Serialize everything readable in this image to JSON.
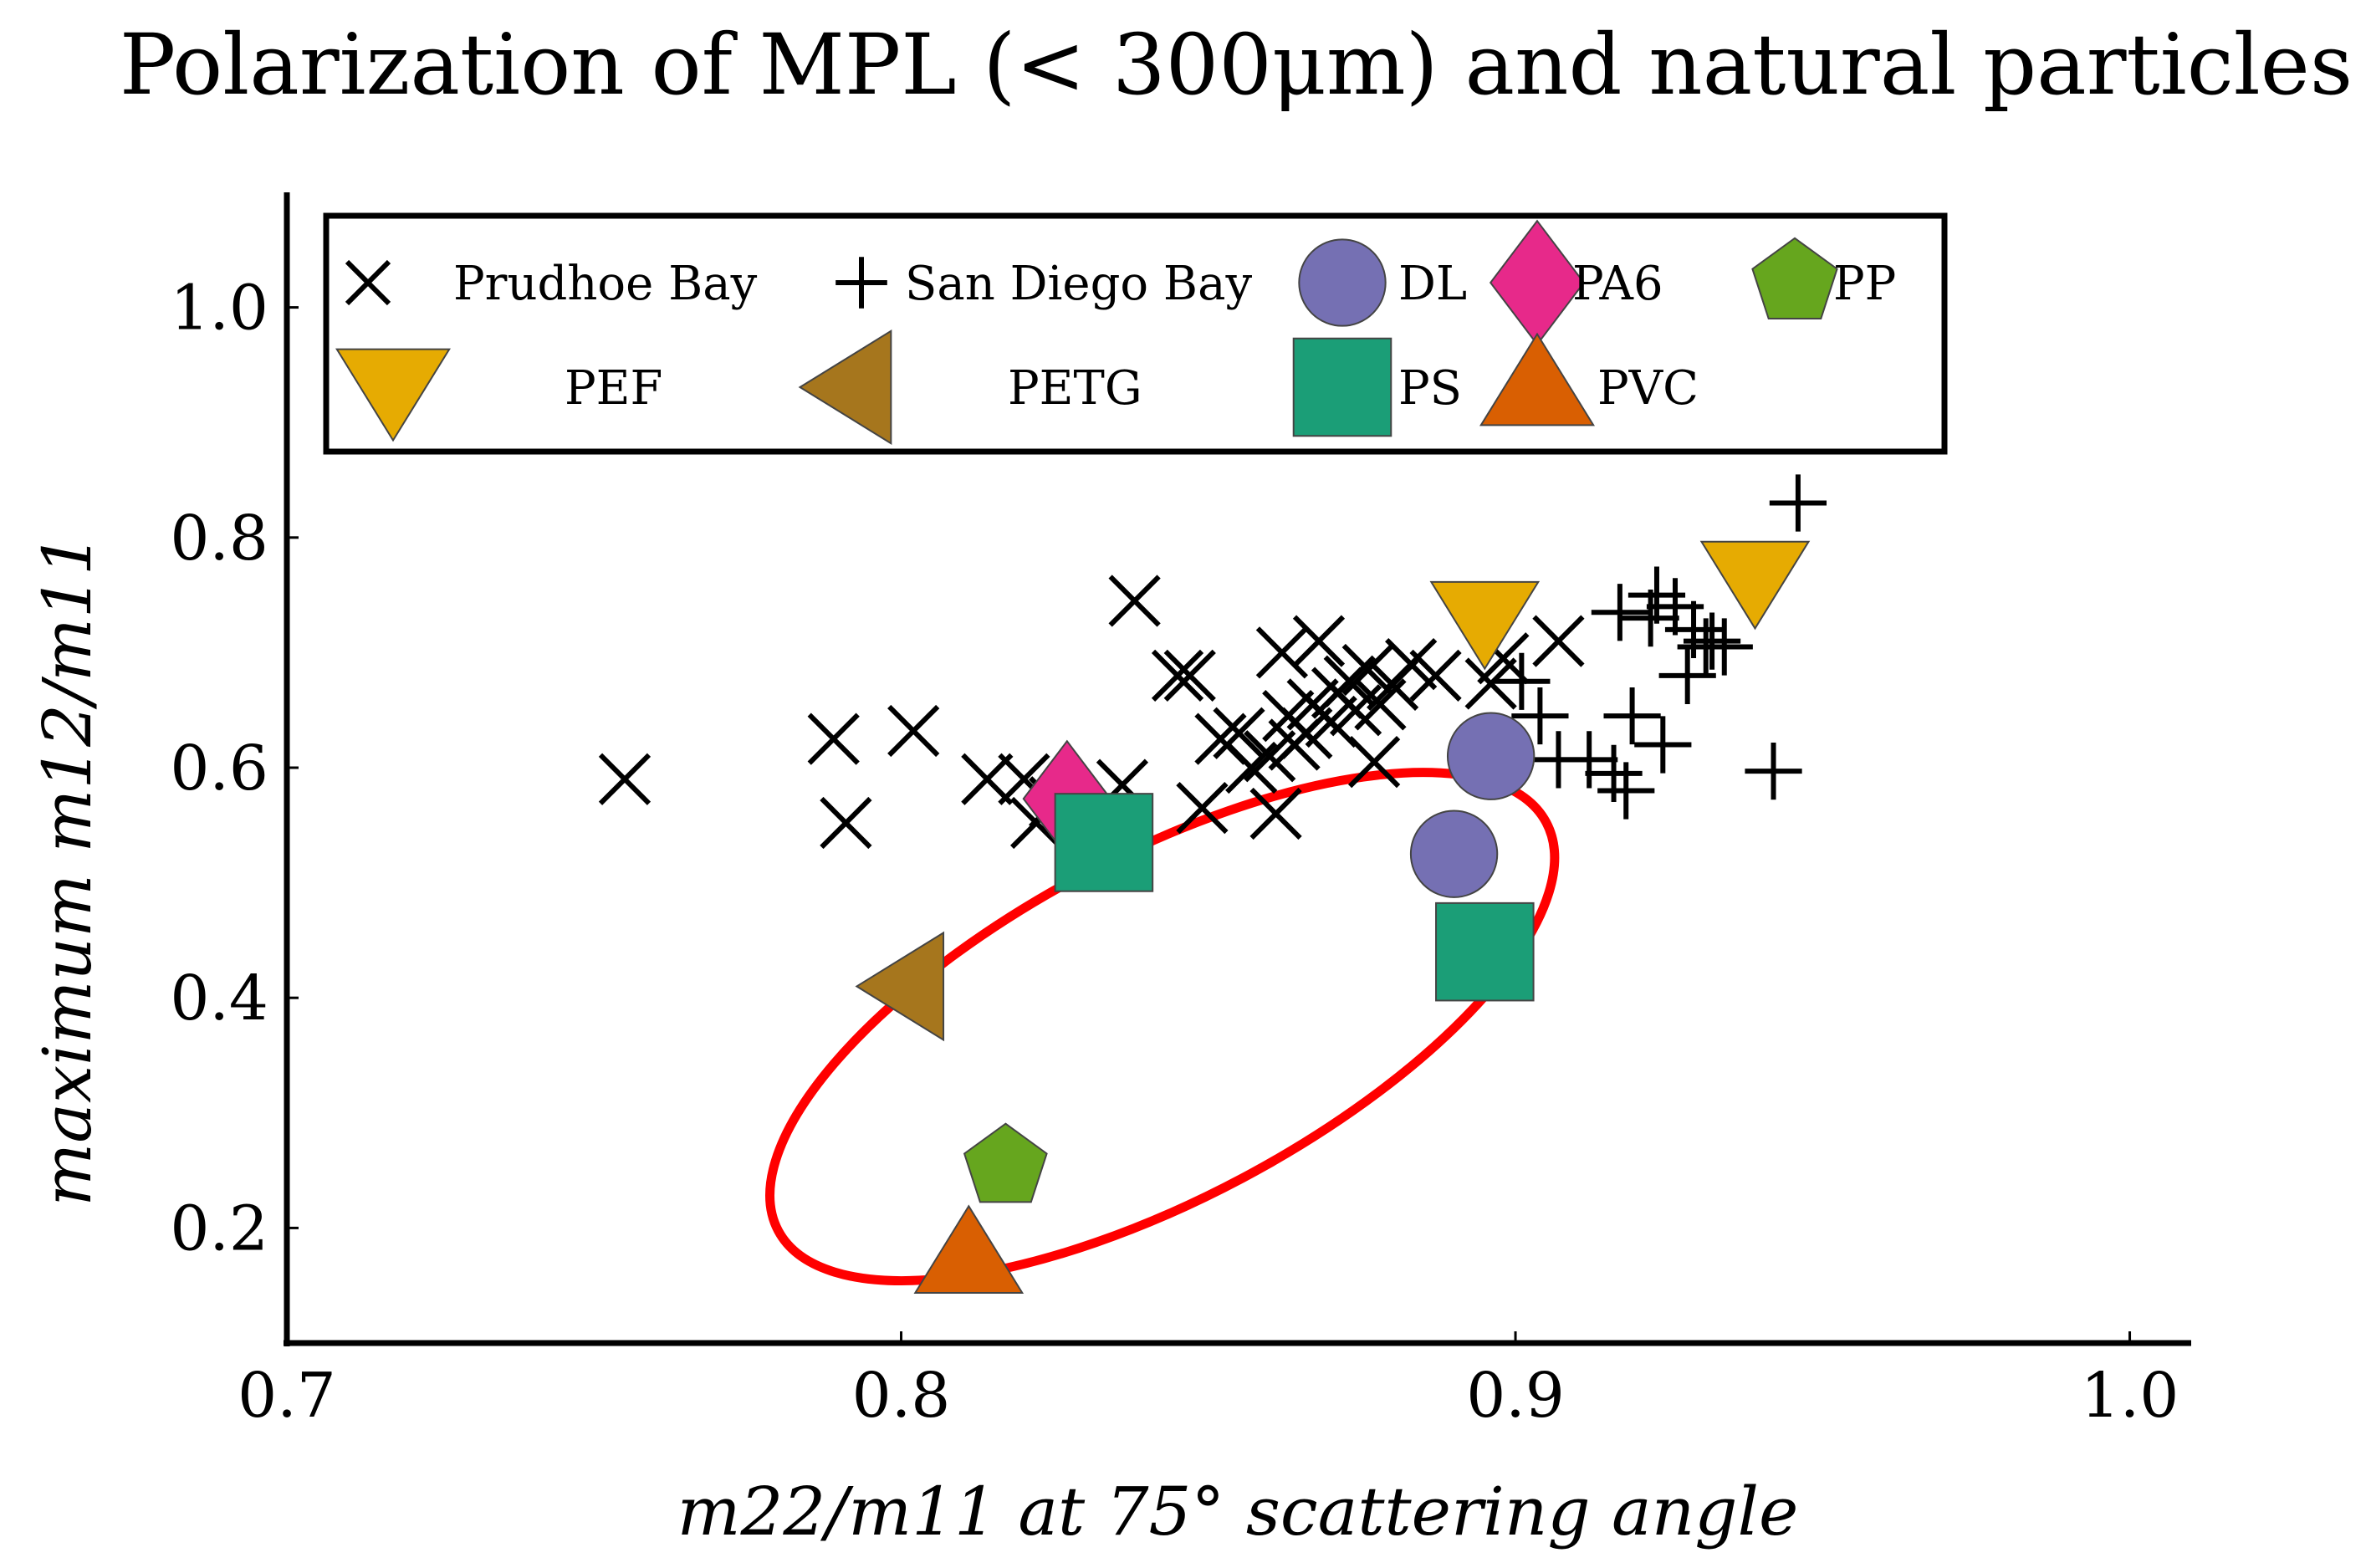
{
  "chart_data": {
    "type": "scatter",
    "title": "Polarization of MPL (< 300μm) and natural particles",
    "xlabel": "m22/m11 at 75° scattering angle",
    "ylabel": "maximum m12/m11",
    "xlim": [
      0.7,
      1.01
    ],
    "ylim": [
      0.1,
      1.1
    ],
    "xticks": [
      0.7,
      0.8,
      0.9,
      1.0
    ],
    "yticks": [
      0.2,
      0.4,
      0.6,
      0.8,
      1.0
    ],
    "xtick_labels": [
      "0.7",
      "0.8",
      "0.9",
      "1.0"
    ],
    "ytick_labels": [
      "0.2",
      "0.4",
      "0.6",
      "0.8",
      "1.0"
    ],
    "legend_position": "top",
    "series": [
      {
        "name": "Prudhoe Bay",
        "marker": "x",
        "color": "#000000",
        "points": [
          [
            0.755,
            0.59
          ],
          [
            0.789,
            0.625
          ],
          [
            0.791,
            0.552
          ],
          [
            0.802,
            0.632
          ],
          [
            0.814,
            0.59
          ],
          [
            0.82,
            0.59
          ],
          [
            0.822,
            0.552
          ],
          [
            0.825,
            0.57
          ],
          [
            0.836,
            0.585
          ],
          [
            0.838,
            0.745
          ],
          [
            0.845,
            0.68
          ],
          [
            0.847,
            0.68
          ],
          [
            0.849,
            0.565
          ],
          [
            0.852,
            0.625
          ],
          [
            0.855,
            0.63
          ],
          [
            0.857,
            0.6
          ],
          [
            0.86,
            0.61
          ],
          [
            0.861,
            0.56
          ],
          [
            0.862,
            0.7
          ],
          [
            0.863,
            0.645
          ],
          [
            0.864,
            0.62
          ],
          [
            0.866,
            0.63
          ],
          [
            0.867,
            0.655
          ],
          [
            0.868,
            0.71
          ],
          [
            0.87,
            0.64
          ],
          [
            0.871,
            0.665
          ],
          [
            0.873,
            0.675
          ],
          [
            0.874,
            0.65
          ],
          [
            0.876,
            0.685
          ],
          [
            0.877,
            0.605
          ],
          [
            0.878,
            0.655
          ],
          [
            0.88,
            0.672
          ],
          [
            0.883,
            0.69
          ],
          [
            0.887,
            0.68
          ],
          [
            0.896,
            0.673
          ],
          [
            0.898,
            0.695
          ],
          [
            0.907,
            0.71
          ]
        ]
      },
      {
        "name": "San Diego Bay",
        "marker": "+",
        "color": "#000000",
        "points": [
          [
            0.901,
            0.675
          ],
          [
            0.904,
            0.645
          ],
          [
            0.907,
            0.607
          ],
          [
            0.912,
            0.607
          ],
          [
            0.916,
            0.595
          ],
          [
            0.917,
            0.735
          ],
          [
            0.918,
            0.58
          ],
          [
            0.919,
            0.645
          ],
          [
            0.922,
            0.73
          ],
          [
            0.923,
            0.75
          ],
          [
            0.924,
            0.62
          ],
          [
            0.926,
            0.74
          ],
          [
            0.928,
            0.68
          ],
          [
            0.929,
            0.72
          ],
          [
            0.931,
            0.705
          ],
          [
            0.932,
            0.71
          ],
          [
            0.934,
            0.705
          ],
          [
            0.942,
            0.597
          ],
          [
            0.946,
            0.83
          ]
        ]
      },
      {
        "name": "DL",
        "marker": "circle",
        "color": "#7570b3",
        "points": [
          [
            0.896,
            0.61
          ],
          [
            0.89,
            0.525
          ]
        ]
      },
      {
        "name": "PA6",
        "marker": "diamond",
        "color": "#e7298a",
        "points": [
          [
            0.827,
            0.573
          ]
        ]
      },
      {
        "name": "PP",
        "marker": "pentagon",
        "color": "#66a61e",
        "points": [
          [
            0.817,
            0.253
          ]
        ]
      },
      {
        "name": "PEF",
        "marker": "triangle-down",
        "color": "#e6ab02",
        "points": [
          [
            0.895,
            0.73
          ],
          [
            0.939,
            0.765
          ]
        ]
      },
      {
        "name": "PETG",
        "marker": "triangle-left",
        "color": "#a6761d",
        "points": [
          [
            0.801,
            0.41
          ]
        ]
      },
      {
        "name": "PS",
        "marker": "square",
        "color": "#1b9e77",
        "points": [
          [
            0.833,
            0.535
          ],
          [
            0.895,
            0.44
          ]
        ]
      },
      {
        "name": "PVC",
        "marker": "triangle-up",
        "color": "#d95f02",
        "points": [
          [
            0.811,
            0.175
          ]
        ]
      }
    ],
    "annotation": {
      "type": "ellipse",
      "color": "#ff0000",
      "description": "red ellipse enclosing the microplastic (MPL) samples",
      "data_points": [
        [
          0.885,
          0.6
        ],
        [
          0.905,
          0.55
        ],
        [
          0.89,
          0.41
        ],
        [
          0.84,
          0.22
        ],
        [
          0.8,
          0.15
        ],
        [
          0.78,
          0.26
        ],
        [
          0.8,
          0.42
        ],
        [
          0.84,
          0.56
        ]
      ]
    }
  }
}
